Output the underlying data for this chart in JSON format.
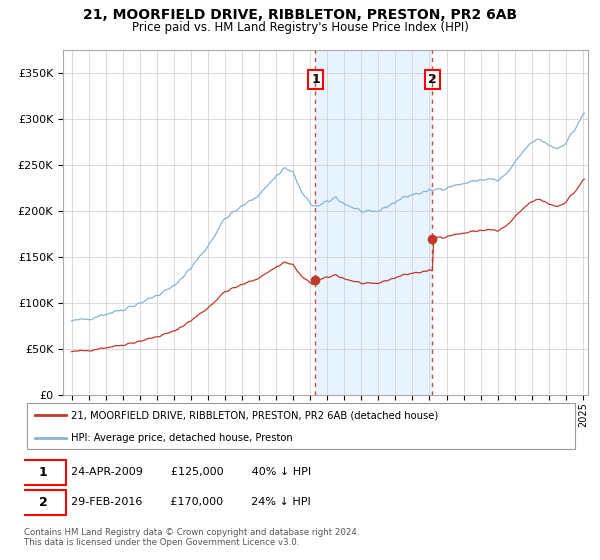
{
  "title1": "21, MOORFIELD DRIVE, RIBBLETON, PRESTON, PR2 6AB",
  "title2": "Price paid vs. HM Land Registry's House Price Index (HPI)",
  "legend_line1": "21, MOORFIELD DRIVE, RIBBLETON, PRESTON, PR2 6AB (detached house)",
  "legend_line2": "HPI: Average price, detached house, Preston",
  "transaction1_date": "24-APR-2009",
  "transaction1_price": "£125,000",
  "transaction1_hpi": "40% ↓ HPI",
  "transaction2_date": "29-FEB-2016",
  "transaction2_price": "£170,000",
  "transaction2_hpi": "24% ↓ HPI",
  "footer": "Contains HM Land Registry data © Crown copyright and database right 2024.\nThis data is licensed under the Open Government Licence v3.0.",
  "hpi_color": "#8ab4d4",
  "price_color": "#c0392b",
  "vline_color": "#c0392b",
  "shade_color": "#ddeeff",
  "marker1_x": 2009.31,
  "marker1_y": 125000,
  "marker2_x": 2016.17,
  "marker2_y": 170000,
  "ylim": [
    0,
    375000
  ],
  "xlim_start": 1994.5,
  "xlim_end": 2025.3
}
